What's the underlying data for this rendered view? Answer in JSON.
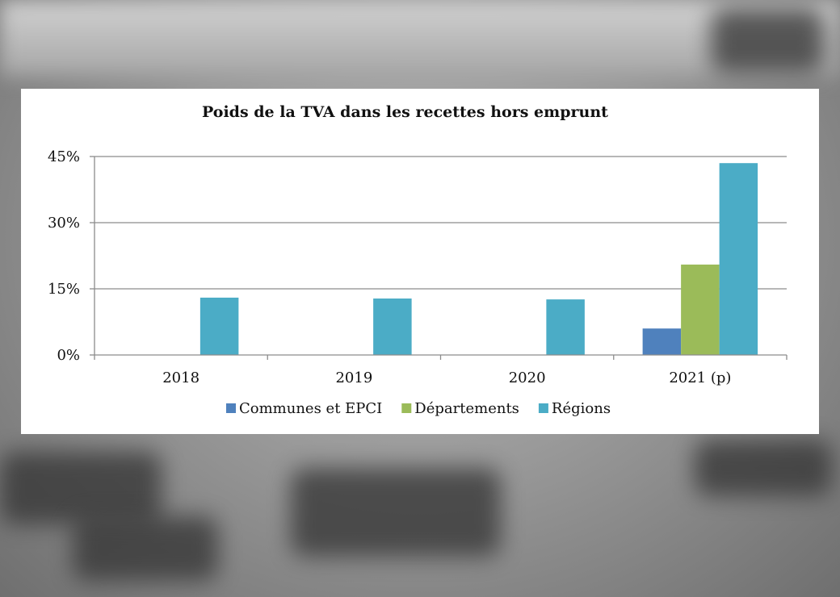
{
  "chart_data": {
    "type": "bar",
    "title": "Poids de la TVA dans les recettes hors emprunt",
    "categories": [
      "2018",
      "2019",
      "2020",
      "2021 (p)"
    ],
    "series": [
      {
        "name": "Communes et EPCI",
        "color": "#4f81bd",
        "values": [
          0,
          0,
          0,
          6
        ]
      },
      {
        "name": "Départements",
        "color": "#9bbb59",
        "values": [
          0,
          0,
          0,
          20.5
        ]
      },
      {
        "name": "Régions",
        "color": "#4bacc6",
        "values": [
          13,
          12.8,
          12.6,
          43.5
        ]
      }
    ],
    "ylim": [
      0,
      45
    ],
    "yticks": [
      {
        "value": 0,
        "label": "0%"
      },
      {
        "value": 15,
        "label": "15%"
      },
      {
        "value": 30,
        "label": "30%"
      },
      {
        "value": 45,
        "label": "45%"
      }
    ],
    "grid": true,
    "legend_position": "bottom"
  }
}
